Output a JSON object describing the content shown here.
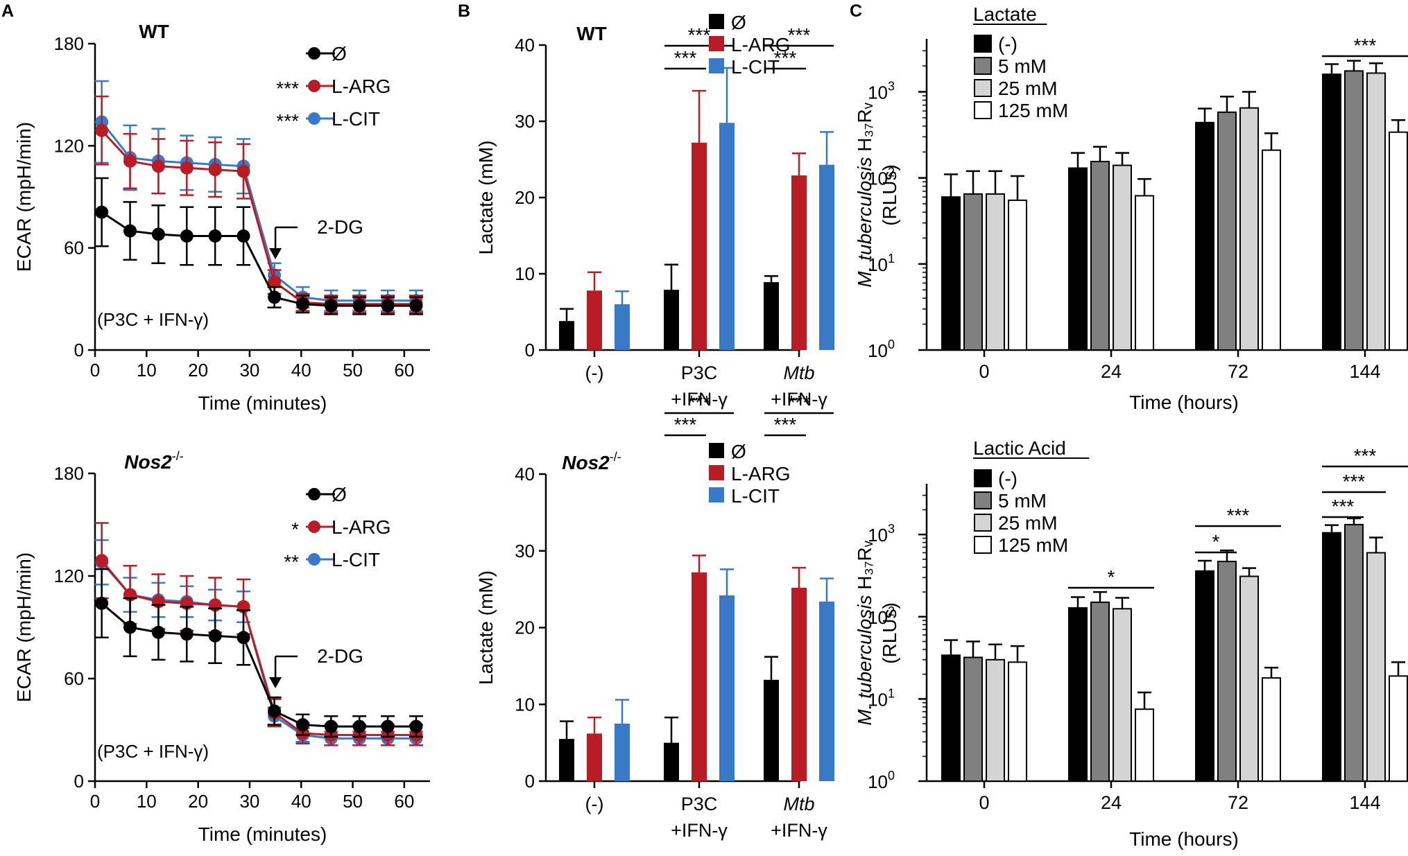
{
  "panel_labels": [
    "A",
    "B",
    "C"
  ],
  "colors": {
    "none": "#000000",
    "arg": "#b81c24",
    "cit": "#3a78c8"
  },
  "chart_data": [
    {
      "id": "A-WT",
      "panel": "A",
      "type": "line",
      "title": "WT",
      "xlabel": "Time (minutes)",
      "ylabel": "ECAR (mpH/min)",
      "xlim": [
        0,
        65
      ],
      "ylim": [
        0,
        180
      ],
      "xticks": [
        0,
        10,
        20,
        30,
        40,
        50,
        60
      ],
      "yticks": [
        0,
        60,
        120,
        180
      ],
      "annotation": "(P3C + IFN-γ)",
      "injection_label": "2-DG",
      "injection_x": 35,
      "x": [
        1.3,
        6.8,
        12.3,
        17.8,
        23.3,
        28.8,
        34.8,
        40.3,
        45.8,
        51.3,
        56.8,
        62.3
      ],
      "series": [
        {
          "name": "Ø",
          "sig": "",
          "color_key": "none",
          "values": [
            81,
            70,
            68,
            67,
            67,
            67,
            31,
            27,
            26,
            26,
            26,
            26
          ],
          "errors": [
            20,
            17,
            17,
            17,
            17,
            17,
            6,
            5,
            5,
            5,
            5,
            5
          ]
        },
        {
          "name": "L-ARG",
          "sig": "***",
          "color_key": "arg",
          "values": [
            129,
            111,
            108,
            107,
            106,
            105,
            40,
            28,
            27,
            27,
            27,
            27
          ],
          "errors": [
            20,
            16,
            16,
            16,
            16,
            16,
            7,
            5,
            5,
            5,
            5,
            5
          ]
        },
        {
          "name": "L-CIT",
          "sig": "***",
          "color_key": "cit",
          "values": [
            134,
            113,
            111,
            110,
            109,
            108,
            44,
            31,
            29,
            29,
            29,
            29
          ],
          "errors": [
            24,
            19,
            19,
            16,
            16,
            16,
            7,
            6,
            6,
            6,
            6,
            6
          ]
        }
      ]
    },
    {
      "id": "A-Nos2",
      "panel": "A",
      "type": "line",
      "title": "Nos2",
      "title_sup": "-/-",
      "xlabel": "Time (minutes)",
      "ylabel": "ECAR (mpH/min)",
      "xlim": [
        0,
        65
      ],
      "ylim": [
        0,
        180
      ],
      "xticks": [
        0,
        10,
        20,
        30,
        40,
        50,
        60
      ],
      "yticks": [
        0,
        60,
        120,
        180
      ],
      "annotation": "(P3C + IFN-γ)",
      "injection_label": "2-DG",
      "injection_x": 35,
      "x": [
        1.3,
        6.8,
        12.3,
        17.8,
        23.3,
        28.8,
        34.8,
        40.3,
        45.8,
        51.3,
        56.8,
        62.3
      ],
      "series": [
        {
          "name": "Ø",
          "sig": "",
          "color_key": "none",
          "values": [
            104,
            90,
            87,
            86,
            85,
            84,
            41,
            33,
            32,
            32,
            32,
            32
          ],
          "errors": [
            20,
            17,
            16,
            16,
            16,
            16,
            8,
            6,
            6,
            6,
            6,
            6
          ]
        },
        {
          "name": "L-ARG",
          "sig": "*",
          "color_key": "arg",
          "values": [
            129,
            109,
            105,
            104,
            103,
            102,
            40,
            28,
            27,
            27,
            27,
            27
          ],
          "errors": [
            22,
            17,
            16,
            16,
            16,
            16,
            8,
            6,
            6,
            6,
            6,
            6
          ]
        },
        {
          "name": "L-CIT",
          "sig": "**",
          "color_key": "cit",
          "values": [
            128,
            109,
            106,
            105,
            103,
            102,
            38,
            27,
            25,
            25,
            25,
            25
          ],
          "errors": [
            13,
            10,
            10,
            9,
            9,
            9,
            5,
            4,
            4,
            4,
            4,
            4
          ]
        }
      ]
    },
    {
      "id": "B-WT",
      "panel": "B",
      "type": "bar",
      "title": "WT",
      "ylabel": "Lactate (mM)",
      "ylim": [
        0,
        40
      ],
      "yticks": [
        0,
        10,
        20,
        30,
        40
      ],
      "categories": [
        [
          "(-)"
        ],
        [
          "P3C",
          "+IFN-γ"
        ],
        [
          "Mtb",
          "+IFN-γ"
        ]
      ],
      "italic_first_line": [
        false,
        false,
        true
      ],
      "series": [
        {
          "name": "Ø",
          "color_key": "none",
          "values": [
            3.8,
            7.9,
            8.9
          ],
          "errors": [
            1.6,
            3.3,
            0.8
          ]
        },
        {
          "name": "L-ARG",
          "color_key": "arg",
          "values": [
            7.8,
            27.2,
            22.9
          ],
          "errors": [
            2.4,
            6.8,
            2.9
          ]
        },
        {
          "name": "L-CIT",
          "color_key": "cit",
          "values": [
            6.0,
            29.8,
            24.3
          ],
          "errors": [
            1.7,
            7.2,
            4.3
          ]
        }
      ],
      "significance": [
        {
          "group": 1,
          "from": 0,
          "to": 2,
          "label": "***",
          "level": 0
        },
        {
          "group": 1,
          "from": 0,
          "to": 1,
          "label": "***",
          "level": 1
        },
        {
          "group": 2,
          "from": 0,
          "to": 2,
          "label": "***",
          "level": 0
        },
        {
          "group": 2,
          "from": 0,
          "to": 1,
          "label": "***",
          "level": 1
        }
      ]
    },
    {
      "id": "B-Nos2",
      "panel": "B",
      "type": "bar",
      "title": "Nos2",
      "title_sup": "-/-",
      "ylabel": "Lactate (mM)",
      "ylim": [
        0,
        40
      ],
      "yticks": [
        0,
        10,
        20,
        30,
        40
      ],
      "categories": [
        [
          "(-)"
        ],
        [
          "P3C",
          "+IFN-γ"
        ],
        [
          "Mtb",
          "+IFN-γ"
        ]
      ],
      "italic_first_line": [
        false,
        false,
        true
      ],
      "series": [
        {
          "name": "Ø",
          "color_key": "none",
          "values": [
            5.5,
            5.0,
            13.2
          ],
          "errors": [
            2.3,
            3.3,
            3.0
          ]
        },
        {
          "name": "L-ARG",
          "color_key": "arg",
          "values": [
            6.2,
            27.2,
            25.2
          ],
          "errors": [
            2.1,
            2.2,
            2.6
          ]
        },
        {
          "name": "L-CIT",
          "color_key": "cit",
          "values": [
            7.5,
            24.2,
            23.4
          ],
          "errors": [
            3.1,
            3.4,
            3.0
          ]
        }
      ],
      "significance": [
        {
          "group": 1,
          "from": 0,
          "to": 2,
          "label": "***",
          "level": 0
        },
        {
          "group": 1,
          "from": 0,
          "to": 1,
          "label": "***",
          "level": 1
        },
        {
          "group": 2,
          "from": 0,
          "to": 2,
          "label": "***",
          "level": 0
        },
        {
          "group": 2,
          "from": 0,
          "to": 1,
          "label": "***",
          "level": 1
        }
      ]
    },
    {
      "id": "C-Lactate",
      "panel": "C",
      "type": "bar",
      "title": "Lactate",
      "scale": "log",
      "xlabel": "Time (hours)",
      "ylabel_italic": "M. tuberculosis",
      "ylabel_rest": "H₃₇Rᵥ",
      "ylabel2": "(RLUs)",
      "ylim_log10": [
        0,
        3.6
      ],
      "yticks_exp": [
        0,
        1,
        2,
        3
      ],
      "categories": [
        "0",
        "24",
        "72",
        "144"
      ],
      "series": [
        {
          "name": "(-)",
          "fill": "#000000",
          "values": [
            60,
            130,
            440,
            1600
          ],
          "errors_up": [
            50,
            65,
            200,
            500
          ]
        },
        {
          "name": "5 mM",
          "fill": "#808080",
          "values": [
            65,
            155,
            580,
            1750
          ],
          "errors_up": [
            55,
            75,
            300,
            550
          ]
        },
        {
          "name": "25 mM",
          "fill": "#d4d4d4",
          "values": [
            65,
            140,
            650,
            1650
          ],
          "errors_up": [
            55,
            55,
            350,
            500
          ]
        },
        {
          "name": "125 mM",
          "fill": "#ffffff",
          "values": [
            55,
            62,
            210,
            340
          ],
          "errors_up": [
            50,
            35,
            120,
            130
          ]
        }
      ],
      "significance": [
        {
          "group": 3,
          "from": 0,
          "to": 3,
          "label": "***",
          "level": 0
        }
      ]
    },
    {
      "id": "C-LacticAcid",
      "panel": "C",
      "type": "bar",
      "title": "Lactic Acid",
      "scale": "log",
      "xlabel": "Time (hours)",
      "ylabel_italic": "M. tuberculosis",
      "ylabel_rest": "H₃₇Rᵥ",
      "ylabel2": "(RLUs)",
      "ylim_log10": [
        0,
        3.6
      ],
      "yticks_exp": [
        0,
        1,
        2,
        3
      ],
      "categories": [
        "0",
        "24",
        "72",
        "144"
      ],
      "series": [
        {
          "name": "(-)",
          "fill": "#000000",
          "values": [
            34,
            128,
            360,
            1050
          ],
          "errors_up": [
            18,
            45,
            120,
            250
          ]
        },
        {
          "name": "5 mM",
          "fill": "#808080",
          "values": [
            32,
            150,
            470,
            1320
          ],
          "errors_up": [
            18,
            50,
            170,
            250
          ]
        },
        {
          "name": "25 mM",
          "fill": "#d4d4d4",
          "values": [
            30,
            125,
            310,
            600
          ],
          "errors_up": [
            16,
            45,
            80,
            320
          ]
        },
        {
          "name": "125 mM",
          "fill": "#ffffff",
          "values": [
            28,
            7.5,
            18,
            19
          ],
          "errors_up": [
            16,
            4.5,
            6,
            9
          ]
        }
      ],
      "significance": [
        {
          "group": 1,
          "from": 0,
          "to": 3,
          "label": "*",
          "level": 0
        },
        {
          "group": 2,
          "from": 0,
          "to": 3,
          "label": "***",
          "level": 0
        },
        {
          "group": 2,
          "from": 0,
          "to": 1,
          "label": "*",
          "level": 1
        },
        {
          "group": 3,
          "from": 0,
          "to": 3,
          "label": "***",
          "level": 0
        },
        {
          "group": 3,
          "from": 0,
          "to": 2,
          "label": "***",
          "level": 1
        },
        {
          "group": 3,
          "from": 0,
          "to": 1,
          "label": "***",
          "level": 2
        }
      ]
    }
  ]
}
